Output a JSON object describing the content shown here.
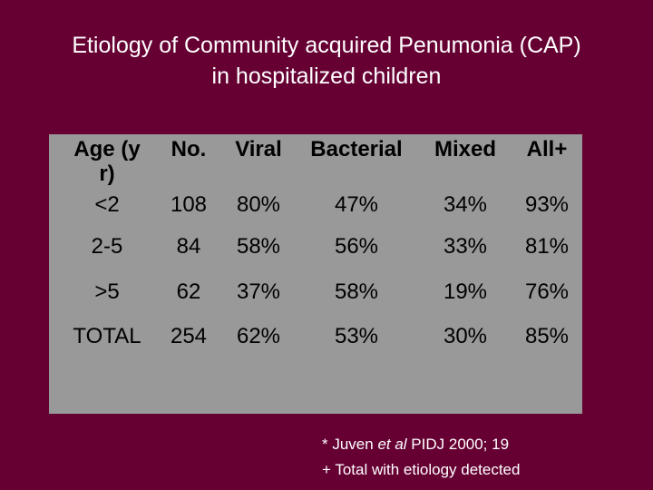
{
  "header": {
    "title": [
      "Etiology of Community acquired Penumonia (CAP)",
      "in hospitalized children"
    ]
  },
  "table": {
    "columns": [
      "Age (yr)",
      "No.",
      "Viral",
      "Bacterial",
      "Mixed",
      "All+"
    ],
    "rows": [
      [
        "<2",
        "108",
        "80%",
        "47%",
        "34%",
        "93%"
      ],
      [
        "2-5",
        "84",
        "58%",
        "56%",
        "33%",
        "81%"
      ],
      [
        ">5",
        "62",
        "37%",
        "58%",
        "19%",
        "76%"
      ],
      [
        "TOTAL",
        "254",
        "62%",
        "53%",
        "30%",
        "85%"
      ]
    ]
  },
  "footnotes": {
    "citation": [
      "* Juven ",
      "et al",
      " PIDJ 2000; 19"
    ],
    "legend": "+ Total with etiology detected"
  }
}
